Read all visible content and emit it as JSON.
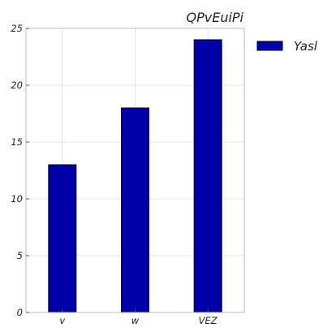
{
  "chart_data": {
    "type": "bar",
    "title": "QPvEuiPi",
    "categories": [
      "v",
      "w",
      "VEZ"
    ],
    "series": [
      {
        "name": "Yasl",
        "values": [
          13,
          18,
          24
        ],
        "color": "#0000a8"
      }
    ],
    "ylim": [
      0,
      25
    ],
    "yticks": [
      0,
      5,
      10,
      15,
      20,
      25
    ],
    "grid": true,
    "legend": "right, outside plot"
  }
}
